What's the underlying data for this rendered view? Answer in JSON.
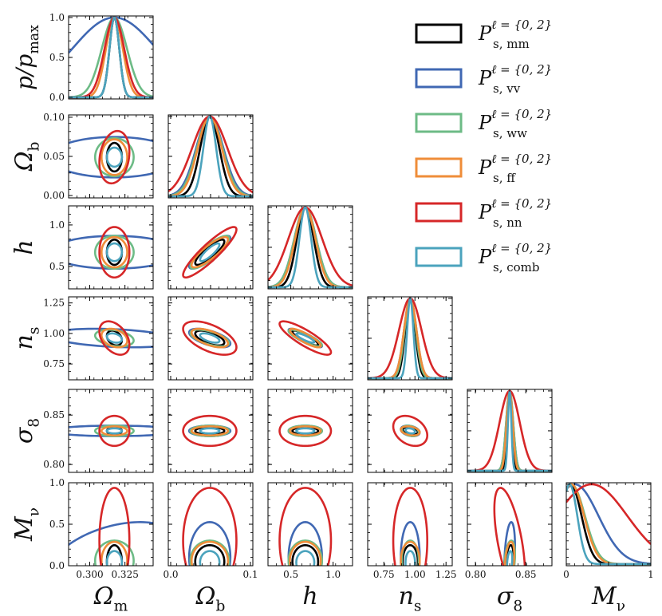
{
  "chart_data": {
    "type": "corner",
    "title": "",
    "parameters": [
      {
        "key": "Om",
        "label": "Ωm",
        "base": "Ω",
        "sub": "m",
        "range": [
          0.285,
          0.345
        ],
        "fiducial": 0.3175,
        "ticks": [
          0.3,
          0.325
        ],
        "tick_labels": [
          "0.300",
          "0.325"
        ]
      },
      {
        "key": "Ob",
        "label": "Ωb",
        "base": "Ω",
        "sub": "b",
        "range": [
          -0.003,
          0.103
        ],
        "fiducial": 0.049,
        "ticks": [
          0.0,
          0.05,
          0.1
        ],
        "tick_labels": [
          "0.00",
          "0.05",
          "0.10"
        ],
        "x_tick_labels": [
          "0.0",
          "",
          "0.1"
        ]
      },
      {
        "key": "h",
        "label": "h",
        "base": "h",
        "sub": "",
        "range": [
          0.23,
          1.23
        ],
        "fiducial": 0.6711,
        "ticks": [
          0.5,
          1.0
        ],
        "tick_labels": [
          "0.5",
          "1.0"
        ]
      },
      {
        "key": "ns",
        "label": "ns",
        "base": "n",
        "sub": "s",
        "range": [
          0.62,
          1.3
        ],
        "fiducial": 0.9624,
        "ticks": [
          0.75,
          1.0,
          1.25
        ],
        "tick_labels": [
          "0.75",
          "1.00",
          "1.25"
        ]
      },
      {
        "key": "s8",
        "label": "σ8",
        "base": "σ",
        "sub": "8",
        "range": [
          0.792,
          0.876
        ],
        "fiducial": 0.834,
        "ticks": [
          0.8,
          0.85
        ],
        "tick_labels": [
          "0.80",
          "0.85"
        ]
      },
      {
        "key": "Mnu",
        "label": "Mν",
        "base": "M",
        "sub": "ν",
        "range": [
          0.0,
          1.0
        ],
        "fiducial": 0.0,
        "ticks": [
          0.0,
          0.5,
          1.0
        ],
        "tick_labels": [
          "0.0",
          "0.5",
          "1.0"
        ],
        "x_tick_labels": [
          "0",
          "",
          "1"
        ]
      }
    ],
    "diag_ylabel": "p/pmax",
    "diag_ylabel_parts": {
      "base": "p/p",
      "sub": "max"
    },
    "diag_ticks": [
      0.0,
      0.5,
      1.0
    ],
    "diag_tick_labels": [
      "0.0",
      "0.5",
      "1.0"
    ],
    "legend_position": "top-right",
    "series": [
      {
        "name": "Ps,mm",
        "label_base": "P",
        "label_sub": "s, mm",
        "label_sup": "ℓ = {0, 2}",
        "color": "#000000",
        "sigma": [
          0.0035,
          0.012,
          0.1,
          0.04,
          0.0025,
          0.13
        ],
        "mnu_center": 0.05,
        "corr": {
          "Ob-h": 0.85,
          "Ob-ns": -0.6,
          "h-ns": -0.85,
          "Om-ns": -0.3,
          "Mnu-s8": 0.3,
          "ns-s8": -0.3
        }
      },
      {
        "name": "Ps,vv",
        "label_base": "P",
        "label_sub": "s, vv",
        "label_sup": "ℓ = {0, 2}",
        "color": "#4068b3",
        "sigma": [
          0.03,
          0.017,
          0.13,
          0.05,
          0.0035,
          0.28
        ],
        "mnu_center": 0.1,
        "corr": {
          "Ob-h": 0.85,
          "Ob-ns": -0.6,
          "h-ns": -0.85,
          "Om-ns": -0.3,
          "Om-Mnu": 0.4,
          "Mnu-s8": 0.3,
          "ns-s8": -0.3
        }
      },
      {
        "name": "Ps,ww",
        "label_base": "P",
        "label_sub": "s, ww",
        "label_sup": "ℓ = {0, 2}",
        "color": "#6dbb86",
        "sigma": [
          0.009,
          0.016,
          0.13,
          0.045,
          0.0035,
          0.16
        ],
        "mnu_center": 0.06,
        "corr": {
          "Ob-h": 0.85,
          "Ob-ns": -0.6,
          "h-ns": -0.85,
          "Om-ns": -0.3,
          "Mnu-s8": 0.3,
          "ns-s8": -0.3
        }
      },
      {
        "name": "Ps,ff",
        "label_base": "P",
        "label_sub": "s, ff",
        "label_sup": "ℓ = {0, 2}",
        "color": "#ef8d39",
        "sigma": [
          0.006,
          0.015,
          0.12,
          0.05,
          0.003,
          0.15
        ],
        "mnu_center": 0.06,
        "corr": {
          "Ob-h": 0.85,
          "Ob-ns": -0.6,
          "h-ns": -0.85,
          "Om-ns": -0.3,
          "Mnu-s8": 0.3,
          "ns-s8": -0.3
        }
      },
      {
        "name": "Ps,nn",
        "label_base": "P",
        "label_sub": "s, nn",
        "label_sup": "ℓ = {0, 2}",
        "color": "#d62728",
        "sigma": [
          0.007,
          0.022,
          0.2,
          0.09,
          0.01,
          0.42
        ],
        "mnu_center": 0.3,
        "corr": {
          "Ob-h": 0.9,
          "Ob-ns": -0.55,
          "h-ns": -0.85,
          "Om-ns": -0.4,
          "Om-Ob": 0.2,
          "Mnu-s8": -0.6,
          "ns-s8": -0.3
        }
      },
      {
        "name": "Ps,comb",
        "label_base": "P",
        "label_sub": "s, comb",
        "label_sup": "ℓ = {0, 2}",
        "color": "#4ba3bd",
        "sigma": [
          0.0035,
          0.008,
          0.07,
          0.025,
          0.0017,
          0.09
        ],
        "mnu_center": 0.04,
        "corr": {
          "Ob-h": 0.85,
          "Ob-ns": -0.6,
          "h-ns": -0.85,
          "Om-ns": -0.3,
          "Mnu-s8": 0.3,
          "ns-s8": -0.3
        }
      }
    ]
  }
}
